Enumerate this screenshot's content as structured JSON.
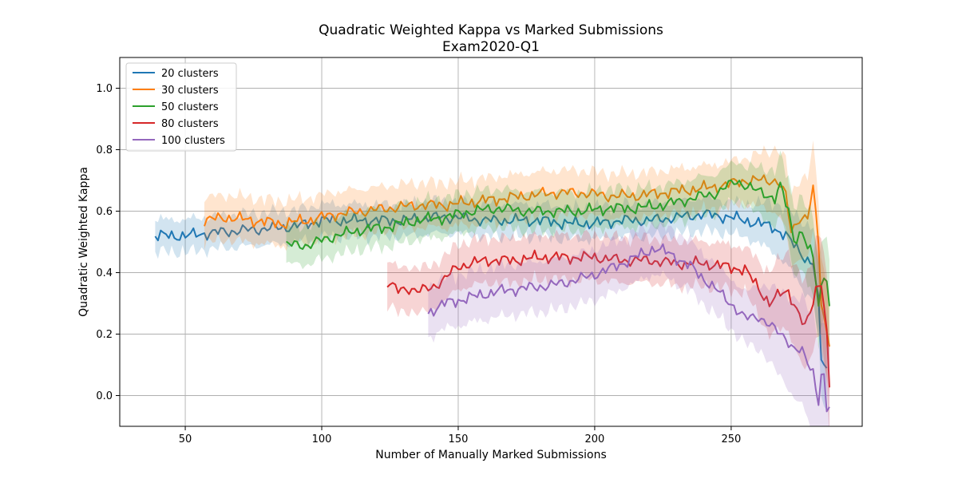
{
  "chart_data": {
    "type": "line",
    "title": "Quadratic Weighted Kappa vs Marked Submissions",
    "subtitle": "Exam2020-Q1",
    "xlabel": "Number of Manually Marked Submissions",
    "ylabel": "Quadratic Weighted Kappa",
    "xlim": [
      26,
      298
    ],
    "ylim": [
      -0.1,
      1.1
    ],
    "xticks": [
      50,
      100,
      150,
      200,
      250
    ],
    "yticks": [
      0.0,
      0.2,
      0.4,
      0.6,
      0.8,
      1.0
    ],
    "grid": true,
    "legend_position": "top-left",
    "series": [
      {
        "name": "20 clusters",
        "color": "#1f77b4",
        "points": [
          [
            39,
            0.52
          ],
          [
            50,
            0.52
          ],
          [
            60,
            0.53
          ],
          [
            75,
            0.54
          ],
          [
            90,
            0.55
          ],
          [
            100,
            0.57
          ],
          [
            110,
            0.57
          ],
          [
            120,
            0.57
          ],
          [
            130,
            0.57
          ],
          [
            140,
            0.58
          ],
          [
            150,
            0.58
          ],
          [
            160,
            0.57
          ],
          [
            170,
            0.57
          ],
          [
            180,
            0.57
          ],
          [
            190,
            0.56
          ],
          [
            200,
            0.56
          ],
          [
            210,
            0.57
          ],
          [
            220,
            0.57
          ],
          [
            230,
            0.58
          ],
          [
            240,
            0.59
          ],
          [
            250,
            0.58
          ],
          [
            260,
            0.56
          ],
          [
            265,
            0.55
          ],
          [
            270,
            0.52
          ],
          [
            275,
            0.47
          ],
          [
            278,
            0.44
          ],
          [
            280,
            0.43
          ],
          [
            282,
            0.3
          ],
          [
            283,
            0.12
          ],
          [
            285,
            0.09
          ]
        ],
        "band": 0.04,
        "band_end": 0.12
      },
      {
        "name": "30 clusters",
        "color": "#ff7f0e",
        "points": [
          [
            57,
            0.57
          ],
          [
            65,
            0.58
          ],
          [
            75,
            0.57
          ],
          [
            85,
            0.56
          ],
          [
            95,
            0.57
          ],
          [
            105,
            0.59
          ],
          [
            115,
            0.6
          ],
          [
            125,
            0.61
          ],
          [
            135,
            0.62
          ],
          [
            145,
            0.62
          ],
          [
            155,
            0.63
          ],
          [
            165,
            0.64
          ],
          [
            175,
            0.65
          ],
          [
            185,
            0.66
          ],
          [
            195,
            0.66
          ],
          [
            205,
            0.65
          ],
          [
            215,
            0.65
          ],
          [
            225,
            0.66
          ],
          [
            235,
            0.67
          ],
          [
            245,
            0.68
          ],
          [
            255,
            0.7
          ],
          [
            262,
            0.7
          ],
          [
            267,
            0.7
          ],
          [
            270,
            0.65
          ],
          [
            272,
            0.53
          ],
          [
            275,
            0.58
          ],
          [
            278,
            0.58
          ],
          [
            280,
            0.67
          ],
          [
            282,
            0.5
          ],
          [
            283,
            0.3
          ],
          [
            285,
            0.21
          ],
          [
            286,
            0.18
          ]
        ],
        "band": 0.06,
        "band_end": 0.14
      },
      {
        "name": "50 clusters",
        "color": "#2ca02c",
        "points": [
          [
            87,
            0.49
          ],
          [
            95,
            0.49
          ],
          [
            105,
            0.52
          ],
          [
            115,
            0.54
          ],
          [
            125,
            0.55
          ],
          [
            135,
            0.57
          ],
          [
            145,
            0.58
          ],
          [
            155,
            0.6
          ],
          [
            165,
            0.61
          ],
          [
            175,
            0.6
          ],
          [
            185,
            0.6
          ],
          [
            195,
            0.6
          ],
          [
            205,
            0.61
          ],
          [
            215,
            0.61
          ],
          [
            225,
            0.62
          ],
          [
            235,
            0.64
          ],
          [
            245,
            0.66
          ],
          [
            252,
            0.7
          ],
          [
            258,
            0.67
          ],
          [
            262,
            0.66
          ],
          [
            266,
            0.64
          ],
          [
            268,
            0.68
          ],
          [
            271,
            0.6
          ],
          [
            273,
            0.51
          ],
          [
            276,
            0.53
          ],
          [
            278,
            0.48
          ],
          [
            280,
            0.45
          ],
          [
            282,
            0.3
          ],
          [
            284,
            0.4
          ],
          [
            285,
            0.38
          ],
          [
            286,
            0.29
          ]
        ],
        "band": 0.05,
        "band_end": 0.13
      },
      {
        "name": "80 clusters",
        "color": "#d62728",
        "points": [
          [
            124,
            0.37
          ],
          [
            128,
            0.34
          ],
          [
            132,
            0.35
          ],
          [
            136,
            0.34
          ],
          [
            140,
            0.35
          ],
          [
            145,
            0.38
          ],
          [
            150,
            0.42
          ],
          [
            160,
            0.44
          ],
          [
            170,
            0.44
          ],
          [
            180,
            0.45
          ],
          [
            190,
            0.45
          ],
          [
            200,
            0.45
          ],
          [
            210,
            0.44
          ],
          [
            220,
            0.44
          ],
          [
            230,
            0.43
          ],
          [
            240,
            0.43
          ],
          [
            248,
            0.42
          ],
          [
            255,
            0.41
          ],
          [
            260,
            0.35
          ],
          [
            264,
            0.3
          ],
          [
            268,
            0.33
          ],
          [
            271,
            0.34
          ],
          [
            274,
            0.28
          ],
          [
            277,
            0.22
          ],
          [
            279,
            0.27
          ],
          [
            281,
            0.35
          ],
          [
            283,
            0.37
          ],
          [
            284,
            0.3
          ],
          [
            285,
            0.2
          ],
          [
            286,
            0.02
          ]
        ],
        "band": 0.06,
        "band_end": 0.16
      },
      {
        "name": "100 clusters",
        "color": "#9467bd",
        "points": [
          [
            139,
            0.27
          ],
          [
            145,
            0.3
          ],
          [
            155,
            0.32
          ],
          [
            165,
            0.34
          ],
          [
            175,
            0.35
          ],
          [
            185,
            0.36
          ],
          [
            195,
            0.38
          ],
          [
            205,
            0.41
          ],
          [
            215,
            0.45
          ],
          [
            222,
            0.48
          ],
          [
            228,
            0.46
          ],
          [
            235,
            0.42
          ],
          [
            240,
            0.38
          ],
          [
            245,
            0.34
          ],
          [
            250,
            0.3
          ],
          [
            255,
            0.25
          ],
          [
            260,
            0.26
          ],
          [
            265,
            0.22
          ],
          [
            270,
            0.19
          ],
          [
            273,
            0.15
          ],
          [
            276,
            0.14
          ],
          [
            278,
            0.11
          ],
          [
            280,
            0.08
          ],
          [
            282,
            -0.02
          ],
          [
            283,
            0.07
          ],
          [
            284,
            0.05
          ],
          [
            285,
            -0.05
          ],
          [
            286,
            -0.04
          ]
        ],
        "band": 0.07,
        "band_end": 0.2
      }
    ]
  }
}
